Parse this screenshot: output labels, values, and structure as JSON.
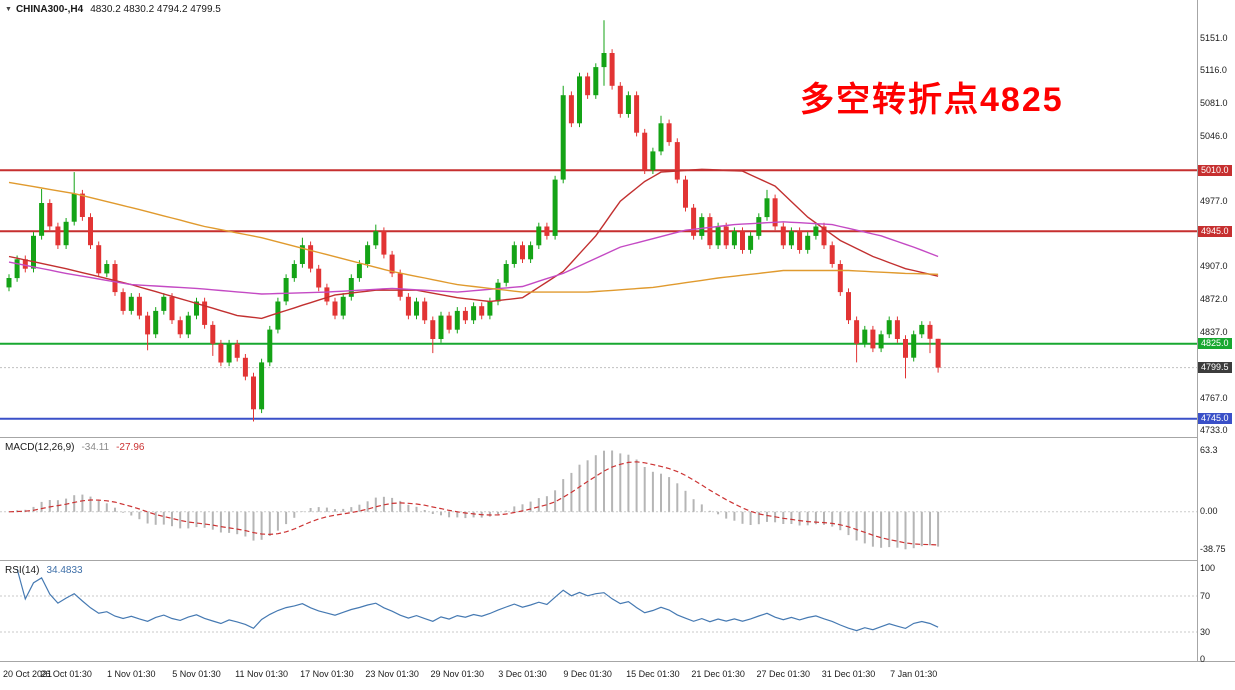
{
  "window": {
    "symbol_with_tf": "CHINA300-,H4",
    "ohlc_text": "4830.2 4830.2 4794.2 4799.5",
    "icons": {
      "collapse_triangle": "▼"
    }
  },
  "annotation": {
    "text": "多空转折点4825",
    "color": "#FE0000"
  },
  "macd_panel": {
    "label": "MACD(12,26,9)",
    "main_value": "-34.11",
    "signal_value": "-27.96"
  },
  "rsi_panel": {
    "label": "RSI(14)",
    "value": "34.4833"
  },
  "colors": {
    "background": "#FFFFFF",
    "candle_up": "#14A316",
    "candle_down": "#E23434",
    "ma_red": "#C23030",
    "ma_magenta": "#C44AC4",
    "ma_orange": "#E09A2E",
    "macd_histogram": "#B5B5B5",
    "macd_signal": "#CC3333",
    "rsi_line": "#4579B2",
    "level_red": "#C62F2F",
    "level_green": "#18A830",
    "level_blue": "#3A50C8",
    "current_price_badge": "#3C3C3C",
    "separator": "#A6A6A6"
  },
  "chart_data": {
    "type": "candlestick",
    "title": "CHINA300-,H4",
    "symbol": "CHINA300-",
    "timeframe": "H4",
    "annotation_text": "多空转折点4825",
    "last_bar_ohlc": [
      4830.2,
      4830.2,
      4794.2,
      4799.5
    ],
    "price_axis": {
      "min": 4725.5,
      "max": 5191.5,
      "ticks": [
        [
          5151,
          "5151.0"
        ],
        [
          5116,
          "5116.0"
        ],
        [
          5081,
          "5081.0"
        ],
        [
          5046,
          "5046.0"
        ],
        [
          4977,
          "4977.0"
        ],
        [
          4907,
          "4907.0"
        ],
        [
          4872,
          "4872.0"
        ],
        [
          4837,
          "4837.0"
        ],
        [
          4767,
          "4767.0"
        ],
        [
          4733,
          "4733.0"
        ]
      ]
    },
    "horizontal_lines": [
      {
        "price": 5010.0,
        "label": "5010.0",
        "color_key": "level_red"
      },
      {
        "price": 4945.0,
        "label": "4945.0",
        "color_key": "level_red"
      },
      {
        "price": 4825.0,
        "label": "4825.0",
        "color_key": "level_green"
      },
      {
        "price": 4745.0,
        "label": "4745.0",
        "color_key": "level_blue"
      }
    ],
    "current_price": {
      "value": 4799.5,
      "label": "4799.5"
    },
    "ohlc": [
      [
        4885,
        4899,
        4881,
        4895
      ],
      [
        4895,
        4919,
        4891,
        4915
      ],
      [
        4915,
        4919,
        4901,
        4905
      ],
      [
        4905,
        4944,
        4901,
        4940
      ],
      [
        4940,
        4990,
        4936,
        4975
      ],
      [
        4975,
        4979,
        4946,
        4950
      ],
      [
        4950,
        4954,
        4926,
        4930
      ],
      [
        4930,
        4959,
        4926,
        4955
      ],
      [
        4955,
        5008,
        4951,
        4985
      ],
      [
        4985,
        4989,
        4956,
        4960
      ],
      [
        4960,
        4964,
        4926,
        4930
      ],
      [
        4930,
        4934,
        4896,
        4900
      ],
      [
        4900,
        4914,
        4896,
        4910
      ],
      [
        4910,
        4914,
        4876,
        4880
      ],
      [
        4880,
        4884,
        4856,
        4860
      ],
      [
        4860,
        4879,
        4856,
        4875
      ],
      [
        4875,
        4879,
        4851,
        4855
      ],
      [
        4855,
        4859,
        4818,
        4835
      ],
      [
        4835,
        4864,
        4831,
        4860
      ],
      [
        4860,
        4879,
        4856,
        4875
      ],
      [
        4875,
        4879,
        4846,
        4850
      ],
      [
        4850,
        4854,
        4831,
        4835
      ],
      [
        4835,
        4859,
        4831,
        4855
      ],
      [
        4855,
        4874,
        4851,
        4870
      ],
      [
        4870,
        4874,
        4841,
        4845
      ],
      [
        4845,
        4849,
        4812,
        4825
      ],
      [
        4825,
        4829,
        4801,
        4805
      ],
      [
        4805,
        4829,
        4801,
        4825
      ],
      [
        4825,
        4829,
        4806,
        4810
      ],
      [
        4810,
        4814,
        4786,
        4790
      ],
      [
        4790,
        4794,
        4742,
        4755
      ],
      [
        4755,
        4809,
        4751,
        4805
      ],
      [
        4805,
        4844,
        4801,
        4840
      ],
      [
        4840,
        4874,
        4836,
        4870
      ],
      [
        4870,
        4899,
        4866,
        4895
      ],
      [
        4895,
        4914,
        4891,
        4910
      ],
      [
        4910,
        4938,
        4906,
        4930
      ],
      [
        4930,
        4934,
        4901,
        4905
      ],
      [
        4905,
        4909,
        4881,
        4885
      ],
      [
        4885,
        4889,
        4866,
        4870
      ],
      [
        4870,
        4874,
        4851,
        4855
      ],
      [
        4855,
        4879,
        4851,
        4875
      ],
      [
        4875,
        4899,
        4871,
        4895
      ],
      [
        4895,
        4914,
        4891,
        4910
      ],
      [
        4910,
        4934,
        4906,
        4930
      ],
      [
        4930,
        4952,
        4926,
        4945
      ],
      [
        4945,
        4949,
        4916,
        4920
      ],
      [
        4920,
        4924,
        4896,
        4900
      ],
      [
        4900,
        4904,
        4871,
        4875
      ],
      [
        4875,
        4879,
        4851,
        4855
      ],
      [
        4855,
        4874,
        4851,
        4870
      ],
      [
        4870,
        4874,
        4846,
        4850
      ],
      [
        4850,
        4854,
        4815,
        4830
      ],
      [
        4830,
        4859,
        4826,
        4855
      ],
      [
        4855,
        4859,
        4836,
        4840
      ],
      [
        4840,
        4864,
        4836,
        4860
      ],
      [
        4860,
        4864,
        4846,
        4850
      ],
      [
        4850,
        4869,
        4846,
        4865
      ],
      [
        4865,
        4869,
        4851,
        4855
      ],
      [
        4855,
        4874,
        4851,
        4870
      ],
      [
        4870,
        4894,
        4866,
        4890
      ],
      [
        4890,
        4914,
        4886,
        4910
      ],
      [
        4910,
        4934,
        4906,
        4930
      ],
      [
        4930,
        4934,
        4911,
        4915
      ],
      [
        4915,
        4934,
        4911,
        4930
      ],
      [
        4930,
        4954,
        4926,
        4950
      ],
      [
        4950,
        4954,
        4936,
        4940
      ],
      [
        4940,
        5004,
        4936,
        5000
      ],
      [
        5000,
        5100,
        4996,
        5090
      ],
      [
        5090,
        5094,
        5056,
        5060
      ],
      [
        5060,
        5114,
        5056,
        5110
      ],
      [
        5110,
        5114,
        5086,
        5090
      ],
      [
        5090,
        5124,
        5086,
        5120
      ],
      [
        5120,
        5170,
        5100,
        5135
      ],
      [
        5135,
        5139,
        5096,
        5100
      ],
      [
        5100,
        5104,
        5066,
        5070
      ],
      [
        5070,
        5094,
        5066,
        5090
      ],
      [
        5090,
        5094,
        5046,
        5050
      ],
      [
        5050,
        5054,
        5006,
        5010
      ],
      [
        5010,
        5034,
        5006,
        5030
      ],
      [
        5030,
        5068,
        5026,
        5060
      ],
      [
        5060,
        5064,
        5036,
        5040
      ],
      [
        5040,
        5044,
        4996,
        5000
      ],
      [
        5000,
        5004,
        4966,
        4970
      ],
      [
        4970,
        4974,
        4936,
        4940
      ],
      [
        4940,
        4964,
        4936,
        4960
      ],
      [
        4960,
        4964,
        4926,
        4930
      ],
      [
        4930,
        4954,
        4926,
        4950
      ],
      [
        4950,
        4954,
        4926,
        4930
      ],
      [
        4930,
        4949,
        4926,
        4945
      ],
      [
        4945,
        4949,
        4921,
        4925
      ],
      [
        4925,
        4944,
        4921,
        4940
      ],
      [
        4940,
        4964,
        4936,
        4960
      ],
      [
        4960,
        4989,
        4956,
        4980
      ],
      [
        4980,
        4984,
        4946,
        4950
      ],
      [
        4950,
        4954,
        4926,
        4930
      ],
      [
        4930,
        4949,
        4926,
        4945
      ],
      [
        4945,
        4949,
        4921,
        4925
      ],
      [
        4925,
        4944,
        4921,
        4940
      ],
      [
        4940,
        4954,
        4936,
        4950
      ],
      [
        4950,
        4954,
        4926,
        4930
      ],
      [
        4930,
        4934,
        4906,
        4910
      ],
      [
        4910,
        4914,
        4876,
        4880
      ],
      [
        4880,
        4884,
        4846,
        4850
      ],
      [
        4850,
        4854,
        4805,
        4825
      ],
      [
        4825,
        4844,
        4821,
        4840
      ],
      [
        4840,
        4844,
        4816,
        4820
      ],
      [
        4820,
        4839,
        4816,
        4835
      ],
      [
        4835,
        4854,
        4831,
        4850
      ],
      [
        4850,
        4854,
        4826,
        4830
      ],
      [
        4830,
        4834,
        4788,
        4810
      ],
      [
        4810,
        4839,
        4806,
        4835
      ],
      [
        4835,
        4849,
        4831,
        4845
      ],
      [
        4845,
        4849,
        4815,
        4830.2
      ],
      [
        4830.2,
        4830.2,
        4794.2,
        4799.5
      ]
    ],
    "moving_averages": [
      {
        "name": "ma-red",
        "color_key": "ma_red",
        "points": [
          [
            0,
            4918
          ],
          [
            7,
            4905
          ],
          [
            15,
            4888
          ],
          [
            23,
            4868
          ],
          [
            28,
            4855
          ],
          [
            31,
            4852
          ],
          [
            36,
            4866
          ],
          [
            40,
            4877
          ],
          [
            45,
            4882
          ],
          [
            50,
            4882
          ],
          [
            55,
            4874
          ],
          [
            59,
            4870
          ],
          [
            63,
            4874
          ],
          [
            68,
            4902
          ],
          [
            72,
            4940
          ],
          [
            75,
            4977
          ],
          [
            78,
            4998
          ],
          [
            80,
            5008
          ],
          [
            85,
            5011
          ],
          [
            90,
            5009
          ],
          [
            94,
            4993
          ],
          [
            98,
            4960
          ],
          [
            102,
            4935
          ],
          [
            106,
            4918
          ],
          [
            110,
            4905
          ],
          [
            114,
            4897
          ]
        ]
      },
      {
        "name": "ma-magenta",
        "color_key": "ma_magenta",
        "points": [
          [
            0,
            4912
          ],
          [
            7,
            4900
          ],
          [
            15,
            4888
          ],
          [
            23,
            4884
          ],
          [
            31,
            4878
          ],
          [
            39,
            4880
          ],
          [
            47,
            4884
          ],
          [
            55,
            4880
          ],
          [
            63,
            4886
          ],
          [
            68,
            4900
          ],
          [
            75,
            4928
          ],
          [
            83,
            4946
          ],
          [
            89,
            4952
          ],
          [
            95,
            4955
          ],
          [
            101,
            4952
          ],
          [
            107,
            4940
          ],
          [
            111,
            4928
          ],
          [
            114,
            4918
          ]
        ]
      },
      {
        "name": "ma-orange",
        "color_key": "ma_orange",
        "points": [
          [
            0,
            4997
          ],
          [
            8,
            4985
          ],
          [
            16,
            4968
          ],
          [
            24,
            4950
          ],
          [
            31,
            4938
          ],
          [
            39,
            4920
          ],
          [
            47,
            4902
          ],
          [
            55,
            4888
          ],
          [
            63,
            4880
          ],
          [
            71,
            4880
          ],
          [
            79,
            4885
          ],
          [
            87,
            4895
          ],
          [
            95,
            4903
          ],
          [
            103,
            4903
          ],
          [
            110,
            4900
          ],
          [
            114,
            4899
          ]
        ]
      }
    ],
    "macd": {
      "label": "MACD(12,26,9)",
      "value_main": -34.11,
      "value_signal": -27.96,
      "fast": 12,
      "slow": 26,
      "signal": 9,
      "axis_min": -50.1,
      "axis_max": 76.7,
      "ticks": [
        [
          63.3,
          "63.3"
        ],
        [
          0,
          "0.00"
        ],
        [
          -38.75,
          "-38.75"
        ]
      ]
    },
    "rsi": {
      "label": "RSI(14)",
      "value": 34.4833,
      "period": 14,
      "axis_min": -2.2,
      "axis_max": 108.8,
      "ticks": [
        [
          100,
          "100"
        ],
        [
          70,
          "70"
        ],
        [
          30,
          "30"
        ],
        [
          0,
          "0"
        ]
      ],
      "levels": [
        70,
        30
      ]
    },
    "time_labels": [
      [
        0,
        "20 Oct 2021"
      ],
      [
        7,
        "26 Oct 01:30"
      ],
      [
        15,
        "1 Nov 01:30"
      ],
      [
        23,
        "5 Nov 01:30"
      ],
      [
        31,
        "11 Nov 01:30"
      ],
      [
        39,
        "17 Nov 01:30"
      ],
      [
        47,
        "23 Nov 01:30"
      ],
      [
        55,
        "29 Nov 01:30"
      ],
      [
        63,
        "3 Dec 01:30"
      ],
      [
        71,
        "9 Dec 01:30"
      ],
      [
        79,
        "15 Dec 01:30"
      ],
      [
        87,
        "21 Dec 01:30"
      ],
      [
        95,
        "27 Dec 01:30"
      ],
      [
        103,
        "31 Dec 01:30"
      ],
      [
        111,
        "7 Jan 01:30"
      ]
    ]
  }
}
